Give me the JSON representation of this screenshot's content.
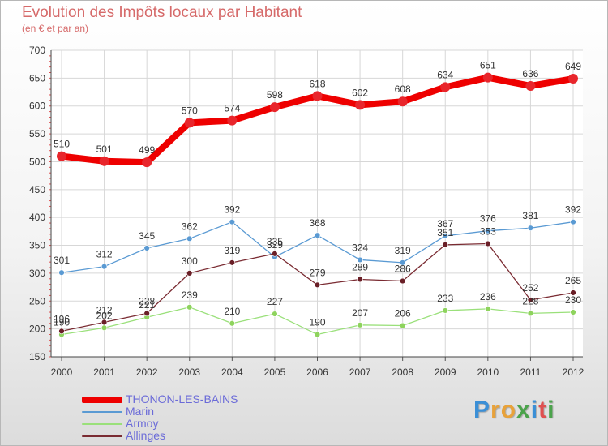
{
  "header": {
    "title": "Evolution des Impôts locaux par Habitant",
    "subtitle": "(en € et par an)"
  },
  "brand": {
    "letters": [
      {
        "char": "P",
        "color": "#3b8fd6"
      },
      {
        "char": "r",
        "color": "#e8a23a"
      },
      {
        "char": "o",
        "color": "#e8a23a"
      },
      {
        "char": "x",
        "color": "#4ba34b"
      },
      {
        "char": "i",
        "color": "#3b8fd6"
      },
      {
        "char": "t",
        "color": "#e05050"
      },
      {
        "char": "i",
        "color": "#4ba34b"
      }
    ]
  },
  "chart_data": {
    "type": "line",
    "title": "Evolution des Impôts locaux par Habitant",
    "subtitle": "(en € et par an)",
    "xlabel": "",
    "ylabel": "",
    "x": [
      "2000",
      "2001",
      "2002",
      "2003",
      "2004",
      "2005",
      "2006",
      "2007",
      "2008",
      "2009",
      "2010",
      "2011",
      "2012"
    ],
    "ylim": [
      150,
      700
    ],
    "yticks": [
      150,
      200,
      250,
      300,
      350,
      400,
      450,
      500,
      550,
      600,
      650,
      700
    ],
    "grid": true,
    "legend_position": "bottom-left",
    "series": [
      {
        "name": "THONON-LES-BAINS",
        "color": "#ee0000",
        "marker_color": "#e8262c",
        "values": [
          510,
          501,
          499,
          570,
          574,
          598,
          618,
          602,
          608,
          634,
          651,
          636,
          649
        ]
      },
      {
        "name": "Marin",
        "color": "#5a9ad3",
        "marker_color": "#5a9ad3",
        "values": [
          301,
          312,
          345,
          362,
          392,
          329,
          368,
          324,
          319,
          367,
          376,
          381,
          392
        ]
      },
      {
        "name": "Armoy",
        "color": "#9ae07a",
        "marker_color": "#8ed35d",
        "values": [
          190,
          202,
          221,
          239,
          210,
          227,
          190,
          207,
          206,
          233,
          236,
          228,
          230
        ]
      },
      {
        "name": "Allinges",
        "color": "#7a2b32",
        "marker_color": "#6a1f27",
        "values": [
          196,
          212,
          228,
          300,
          319,
          335,
          279,
          289,
          286,
          351,
          353,
          252,
          265
        ]
      }
    ]
  }
}
